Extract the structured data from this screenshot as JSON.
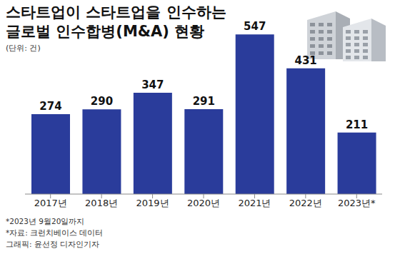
{
  "chart_data": {
    "type": "bar",
    "title": "스타트업이 스타트업을 인수하는\n글로벌 인수합병(M&A) 현황",
    "subtitle": "(단위: 건)",
    "categories": [
      "2017년",
      "2018년",
      "2019년",
      "2020년",
      "2021년",
      "2022년",
      "2023년*"
    ],
    "values": [
      274,
      290,
      347,
      291,
      547,
      431,
      211
    ],
    "color": "#2a3c9b",
    "ylim": [
      0,
      550
    ],
    "data_labels": true,
    "tick_labels": "x",
    "grid": false,
    "annotations": [
      "*2023년 9월20일까지",
      "*자료: 크런치베이스 데이터",
      "그래픽: 윤선정 디자인기자"
    ]
  }
}
